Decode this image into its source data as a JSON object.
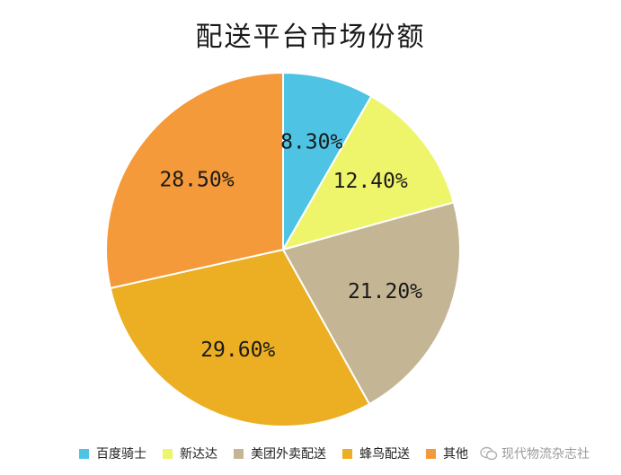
{
  "chart_data": {
    "type": "pie",
    "title": "配送平台市场份额",
    "categories": [
      "百度骑士",
      "新达达",
      "美团外卖配送",
      "蜂鸟配送",
      "其他"
    ],
    "values": [
      8.3,
      12.4,
      21.2,
      29.6,
      28.5
    ],
    "labels": [
      "8.30%",
      "12.40%",
      "21.20%",
      "29.60%",
      "28.50%"
    ],
    "colors": [
      "#4fc3e3",
      "#eef56a",
      "#c4b594",
      "#ecae22",
      "#f59a3a"
    ],
    "start_angle": "12 o'clock",
    "direction": "clockwise",
    "legend_position": "bottom"
  },
  "watermark": {
    "text": "现代物流杂志社",
    "icon": "wechat-icon"
  }
}
